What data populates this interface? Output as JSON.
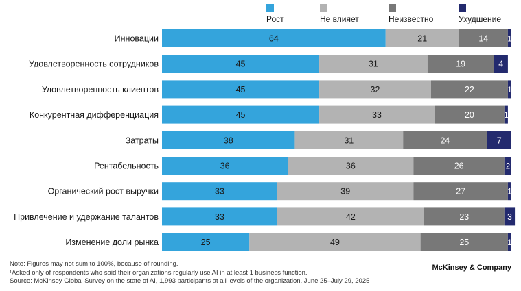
{
  "chart_data": {
    "type": "bar",
    "stacked": true,
    "orientation": "horizontal",
    "title": "",
    "xlabel": "",
    "ylabel": "",
    "xlim": [
      0,
      100
    ],
    "legend_position": "top-right",
    "categories": [
      "Инновации",
      "Удовлетворенность сотрудников",
      "Удовлетворенность клиентов",
      "Конкурентная дифференциация",
      "Затраты",
      "Рентабельность",
      "Органический рост выручки",
      "Привлечение и удержание талантов",
      "Изменение доли рынка"
    ],
    "series": [
      {
        "name": "Рост",
        "color": "#34a4dc",
        "label_color": "#1a1a1a",
        "values": [
          64,
          45,
          45,
          45,
          38,
          36,
          33,
          33,
          25
        ]
      },
      {
        "name": "Не влияет",
        "color": "#b3b3b3",
        "label_color": "#1a1a1a",
        "values": [
          21,
          31,
          32,
          33,
          31,
          36,
          39,
          42,
          49
        ]
      },
      {
        "name": "Неизвестно",
        "color": "#787878",
        "label_color": "#ffffff",
        "values": [
          14,
          19,
          22,
          20,
          24,
          26,
          27,
          23,
          25
        ]
      },
      {
        "name": "Ухудшение",
        "color": "#232a6e",
        "label_color": "#ffffff",
        "values": [
          1,
          4,
          1,
          1,
          7,
          2,
          1,
          3,
          1
        ]
      }
    ]
  },
  "footnotes": {
    "note": "Note: Figures may not sum to 100%, because of rounding.",
    "asked": "¹Asked only of respondents who said their organizations regularly use AI in at least 1 business function.",
    "source": "Source: McKinsey Global Survey on the state of AI, 1,993 participants at all levels of the organization, June 25–July 29, 2025"
  },
  "brand": "McKinsey & Company"
}
